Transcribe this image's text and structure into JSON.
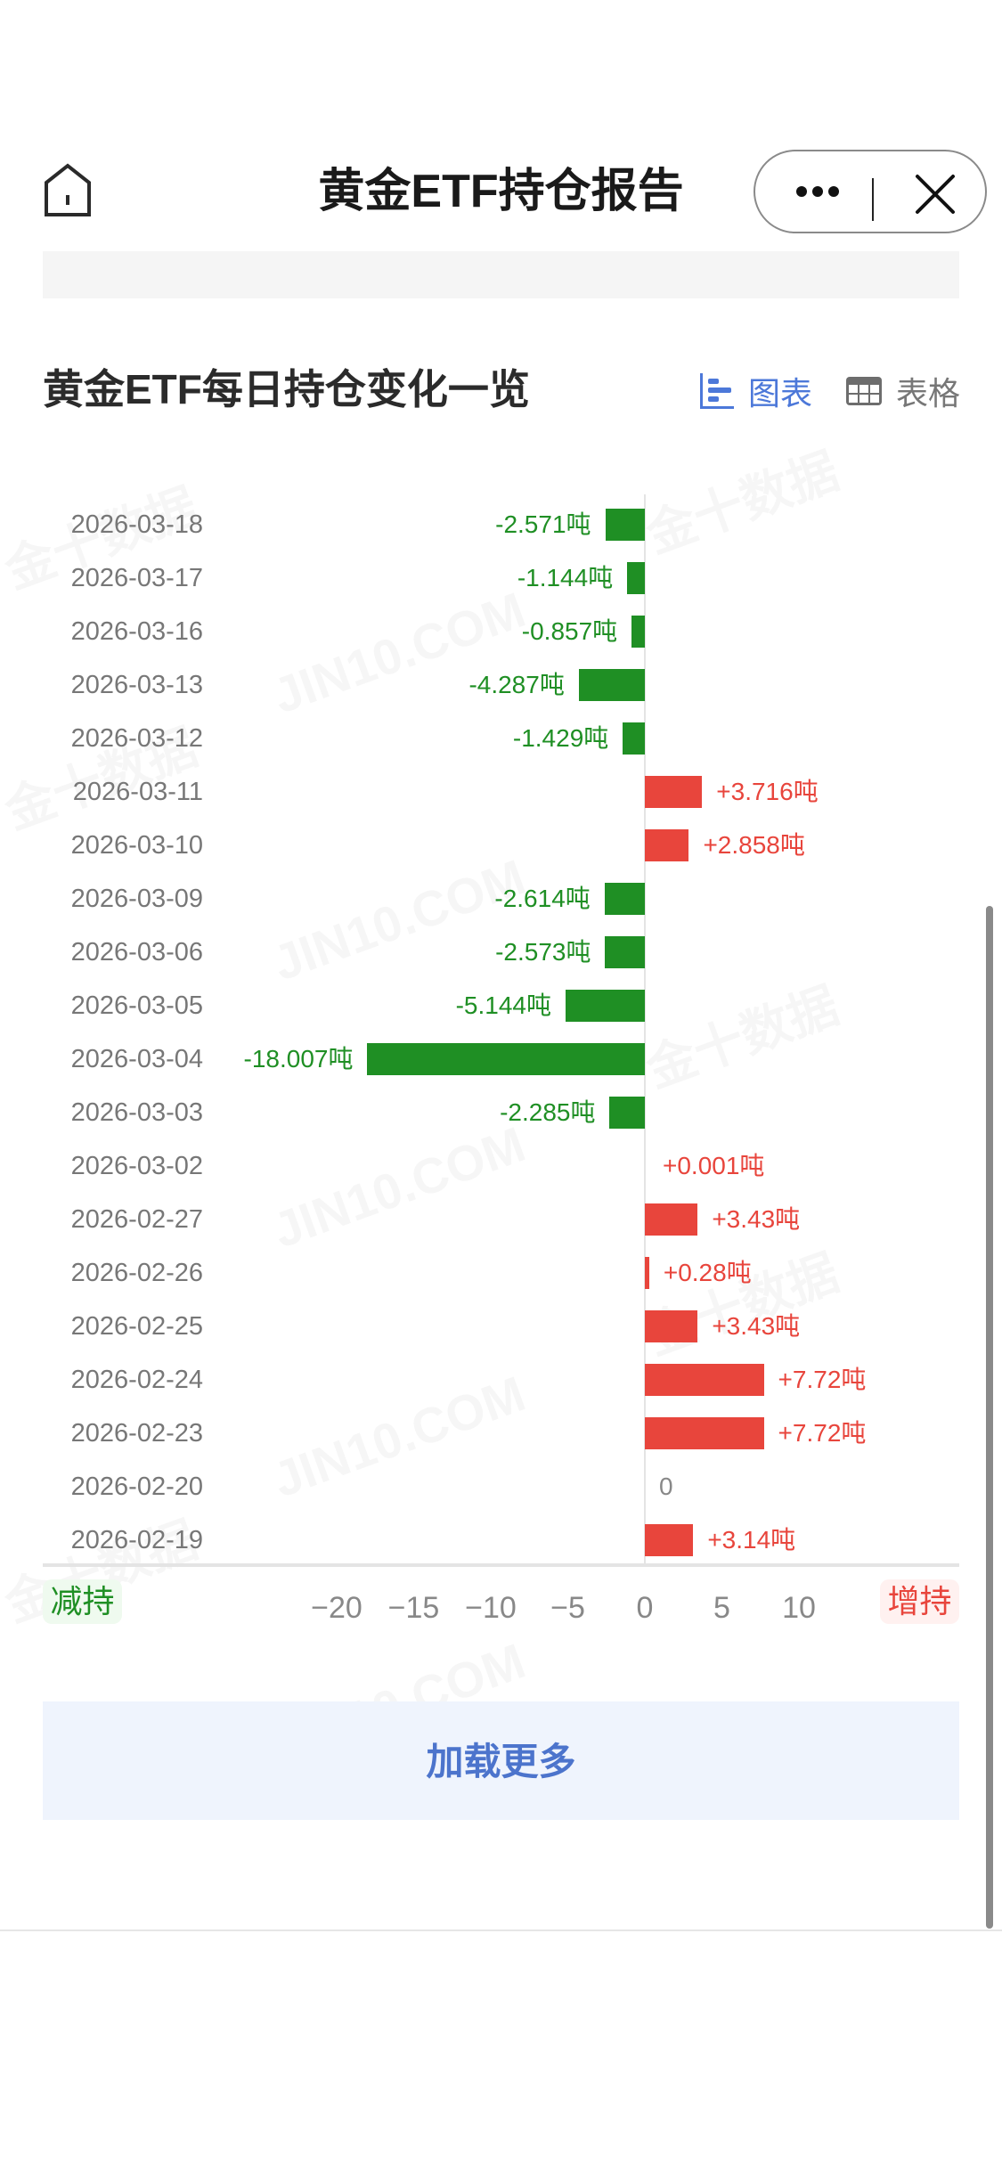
{
  "nav": {
    "title": "黄金ETF持仓报告",
    "home_icon": "home-icon",
    "more_icon": "more-dots-icon",
    "close_icon": "close-icon"
  },
  "section": {
    "title": "黄金ETF每日持仓变化一览",
    "view_toggle": {
      "chart_label": "图表",
      "chart_icon": "bar-chart-icon",
      "table_label": "表格",
      "table_icon": "table-grid-icon",
      "active": "chart"
    }
  },
  "legend": {
    "decrease_label": "减持",
    "increase_label": "增持"
  },
  "colors": {
    "decrease": "#1f8f24",
    "increase": "#e8453c",
    "accent": "#4c78d9"
  },
  "load_more_label": "加载更多",
  "watermarks": [
    "金十数据",
    "JIN10.COM"
  ],
  "chart_data": {
    "type": "bar",
    "orientation": "horizontal",
    "title": "黄金ETF每日持仓变化一览",
    "xlabel": "",
    "ylabel": "",
    "unit": "吨",
    "xlim": [
      -20,
      13
    ],
    "x_ticks": [
      -20,
      -15,
      -10,
      -5,
      0,
      5,
      10
    ],
    "grid": false,
    "legend": [
      "减持",
      "增持"
    ],
    "categories": [
      "2026-03-18",
      "2026-03-17",
      "2026-03-16",
      "2026-03-13",
      "2026-03-12",
      "2026-03-11",
      "2026-03-10",
      "2026-03-09",
      "2026-03-06",
      "2026-03-05",
      "2026-03-04",
      "2026-03-03",
      "2026-03-02",
      "2026-02-27",
      "2026-02-26",
      "2026-02-25",
      "2026-02-24",
      "2026-02-23",
      "2026-02-20",
      "2026-02-19"
    ],
    "values": [
      -2.571,
      -1.144,
      -0.857,
      -4.287,
      -1.429,
      3.716,
      2.858,
      -2.614,
      -2.573,
      -5.144,
      -18.007,
      -2.285,
      0.001,
      3.43,
      0.28,
      3.43,
      7.72,
      7.72,
      0,
      3.14
    ],
    "labels": [
      "-2.571吨",
      "-1.144吨",
      "-0.857吨",
      "-4.287吨",
      "-1.429吨",
      "+3.716吨",
      "+2.858吨",
      "-2.614吨",
      "-2.573吨",
      "-5.144吨",
      "-18.007吨",
      "-2.285吨",
      "+0.001吨",
      "+3.43吨",
      "+0.28吨",
      "+3.43吨",
      "+7.72吨",
      "+7.72吨",
      "0",
      "+3.14吨"
    ]
  }
}
